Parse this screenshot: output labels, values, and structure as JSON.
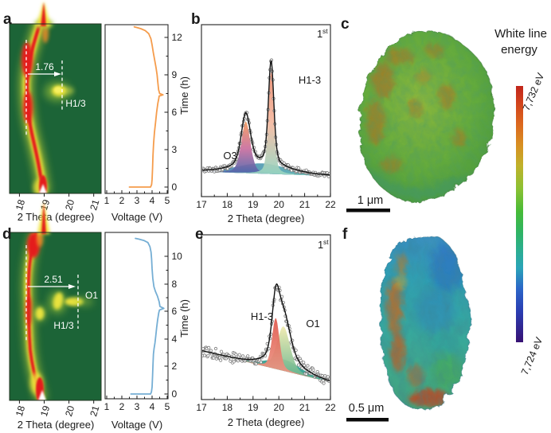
{
  "panels": {
    "a": {
      "label": "a",
      "annot_dist": "1.76",
      "annot_phase": "H1/3",
      "xticks": [
        "18",
        "19",
        "20",
        "21"
      ],
      "xlabel": "2 Theta (degree)",
      "v_ticks": [
        "1",
        "2",
        "3",
        "4",
        "5"
      ],
      "v_label": "Voltage (V)",
      "t_ticks": [
        "0",
        "3",
        "6",
        "9",
        "12"
      ],
      "t_label": "Time (h)"
    },
    "b": {
      "label": "b",
      "cycle": "1",
      "cycle_sup": "st",
      "peak_left": "O3",
      "peak_right": "H1-3",
      "xticks": [
        "17",
        "18",
        "19",
        "20",
        "21",
        "22"
      ],
      "xlabel": "2 Theta (degree)"
    },
    "c": {
      "label": "c",
      "scalebar": "1 μm"
    },
    "d": {
      "label": "d",
      "annot_dist": "2.51",
      "annot_phase_right": "O1",
      "annot_phase": "H1/3",
      "xticks": [
        "18",
        "19",
        "20",
        "21"
      ],
      "xlabel": "2 Theta (degree)",
      "v_ticks": [
        "1",
        "2",
        "3",
        "4",
        "5"
      ],
      "v_label": "Voltage (V)",
      "t_ticks": [
        "0",
        "2",
        "4",
        "6",
        "8",
        "10"
      ],
      "t_label": "Time (h)"
    },
    "e": {
      "label": "e",
      "cycle": "1",
      "cycle_sup": "st",
      "peak_left": "H1-3",
      "peak_right": "O1",
      "xticks": [
        "17",
        "18",
        "19",
        "20",
        "21",
        "22"
      ],
      "xlabel": "2 Theta (degree)"
    },
    "f": {
      "label": "f",
      "scalebar": "0.5 μm"
    }
  },
  "colorbar": {
    "title1": "White line",
    "title2": "energy",
    "max": "7,732 eV",
    "min": "7,724 eV"
  },
  "chart_data": [
    {
      "id": "a_contour",
      "type": "heatmap",
      "xlabel": "2 Theta (degree)",
      "xlim": [
        17.6,
        21.3
      ],
      "xticks": [
        18,
        19,
        20,
        21
      ],
      "yaxis": "Time (h), shared with voltage panel",
      "ylim_time_h": [
        0,
        13
      ],
      "colormap": "dark-green background with yellow-red intensity",
      "features": [
        {
          "label": "main reflection band",
          "two_theta_range": [
            18.2,
            18.9
          ],
          "extent": "full time range"
        },
        {
          "label": "H1/3",
          "two_theta": 19.6,
          "time_h": 7.8
        },
        {
          "label": "shift annotation",
          "text": "1.76",
          "from_two_theta": 18.28,
          "to_two_theta": 19.72,
          "time_h": 9.2
        }
      ]
    },
    {
      "id": "a_voltage",
      "type": "line",
      "xlabel": "Voltage (V)",
      "xlim": [
        1,
        5
      ],
      "xticks": [
        1,
        2,
        3,
        4,
        5
      ],
      "ylabel": "Time (h)",
      "ylim": [
        0,
        13
      ],
      "yticks": [
        0,
        3,
        6,
        9,
        12
      ],
      "series": [
        {
          "name": "1st cycle voltage profile",
          "color": "#f59c4c",
          "points_V_t": [
            [
              2.5,
              0
            ],
            [
              3.9,
              0
            ],
            [
              3.97,
              0.2
            ],
            [
              4.0,
              0.6
            ],
            [
              4.03,
              1.5
            ],
            [
              4.06,
              2.5
            ],
            [
              4.1,
              3.5
            ],
            [
              4.16,
              4.4
            ],
            [
              4.23,
              5.2
            ],
            [
              4.3,
              6.0
            ],
            [
              4.38,
              6.7
            ],
            [
              4.44,
              7.1
            ],
            [
              4.47,
              7.3
            ],
            [
              4.72,
              7.4
            ],
            [
              4.5,
              7.5
            ],
            [
              4.43,
              7.8
            ],
            [
              4.38,
              8.4
            ],
            [
              4.33,
              9.0
            ],
            [
              4.26,
              9.6
            ],
            [
              4.17,
              10.2
            ],
            [
              4.08,
              10.8
            ],
            [
              4.0,
              11.4
            ],
            [
              3.92,
              11.9
            ],
            [
              3.78,
              12.3
            ],
            [
              3.55,
              12.55
            ],
            [
              3.25,
              12.7
            ],
            [
              2.98,
              12.8
            ],
            [
              2.82,
              12.85
            ]
          ]
        }
      ]
    },
    {
      "id": "b_xrd",
      "type": "line+scatter",
      "cycle": "1st",
      "xlabel": "2 Theta (degree)",
      "xlim": [
        17,
        22
      ],
      "xticks": [
        17,
        18,
        19,
        20,
        21,
        22
      ],
      "ylim": [
        0,
        10
      ],
      "baseline": [
        1.45,
        1.2
      ],
      "noise": 0.14,
      "seed": 42,
      "fit_color": "#111111",
      "marker_color": "#7a7a7a",
      "peaks": [
        {
          "name": "base",
          "center": 19.35,
          "amplitude": 0.6,
          "hwhm": 1.15,
          "fill": [
            "#4b7fb6",
            "#57b9ae"
          ],
          "grad": "x"
        },
        {
          "name": "O3",
          "center": 18.72,
          "amplitude": 3.0,
          "hwhm": 0.21,
          "fill": [
            "#f2995c",
            "#c96e9e",
            "#3f63ac"
          ],
          "grad": "y"
        },
        {
          "name": "H1-3",
          "center": 19.7,
          "amplitude": 6.0,
          "hwhm": 0.125,
          "fill": [
            "#e98b6f",
            "#f4b9a0",
            "#93d6c2"
          ],
          "grad": "y"
        }
      ]
    },
    {
      "id": "d_contour",
      "type": "heatmap",
      "xlabel": "2 Theta (degree)",
      "xlim": [
        17.6,
        21.3
      ],
      "xticks": [
        18,
        19,
        20,
        21
      ],
      "yaxis": "Time (h), shared with voltage panel",
      "ylim_time_h": [
        0,
        11.5
      ],
      "colormap": "dark-green background with yellow-red intensity",
      "features": [
        {
          "label": "main reflection band",
          "two_theta_range": [
            18.2,
            18.9
          ],
          "extent": "full time range"
        },
        {
          "label": "H1/3",
          "two_theta": 19.56,
          "time_h": 6.8
        },
        {
          "label": "O1",
          "two_theta": 20.2,
          "time_h": 7.0
        },
        {
          "label": "shift annotation",
          "text": "2.51",
          "from_two_theta": 18.28,
          "to_two_theta": 20.37,
          "time_h": 7.8
        }
      ]
    },
    {
      "id": "d_voltage",
      "type": "line",
      "xlabel": "Voltage (V)",
      "xlim": [
        1,
        5
      ],
      "xticks": [
        1,
        2,
        3,
        4,
        5
      ],
      "ylabel": "Time (h)",
      "ylim": [
        0,
        11.5
      ],
      "yticks": [
        0,
        2,
        4,
        6,
        8,
        10
      ],
      "series": [
        {
          "name": "1st cycle voltage profile",
          "color": "#75aed4",
          "points_V_t": [
            [
              2.6,
              0
            ],
            [
              3.9,
              0
            ],
            [
              3.96,
              0.15
            ],
            [
              4.0,
              0.5
            ],
            [
              4.03,
              1.3
            ],
            [
              4.06,
              2.1
            ],
            [
              4.09,
              2.9
            ],
            [
              4.13,
              3.3
            ],
            [
              4.19,
              3.7
            ],
            [
              4.24,
              4.2
            ],
            [
              4.3,
              4.8
            ],
            [
              4.37,
              5.4
            ],
            [
              4.44,
              5.9
            ],
            [
              4.49,
              6.1
            ],
            [
              4.78,
              6.22
            ],
            [
              4.52,
              6.35
            ],
            [
              4.47,
              6.7
            ],
            [
              4.36,
              7.1
            ],
            [
              4.22,
              7.45
            ],
            [
              4.12,
              7.8
            ],
            [
              4.05,
              8.4
            ],
            [
              4.0,
              9.1
            ],
            [
              3.97,
              9.8
            ],
            [
              3.93,
              10.3
            ],
            [
              3.86,
              10.7
            ],
            [
              3.72,
              11.0
            ],
            [
              3.45,
              11.15
            ],
            [
              3.12,
              11.25
            ],
            [
              2.9,
              11.3
            ]
          ]
        }
      ]
    },
    {
      "id": "e_xrd",
      "type": "line+scatter",
      "cycle": "1st",
      "xlabel": "2 Theta (degree)",
      "xlim": [
        17,
        22
      ],
      "xticks": [
        17,
        18,
        19,
        20,
        21,
        22
      ],
      "ylim": [
        0,
        10
      ],
      "baseline": [
        2.95,
        1.05
      ],
      "noise": 0.33,
      "seed": 77,
      "fit_color": "#111111",
      "marker_color": "#7a7a7a",
      "peaks": [
        {
          "name": "base",
          "center": 20.2,
          "amplitude": 0.7,
          "hwhm": 0.75,
          "fill": [
            "#2f9e8e",
            "#2f9e8e"
          ],
          "grad": "y"
        },
        {
          "name": "O1",
          "center": 20.18,
          "amplitude": 2.7,
          "hwhm": 0.3,
          "fill": [
            "#efe9ac",
            "#58b08b"
          ],
          "grad": "y"
        },
        {
          "name": "H1-3",
          "center": 19.88,
          "amplitude": 3.1,
          "hwhm": 0.17,
          "fill": [
            "#e0564a",
            "#eda08e"
          ],
          "grad": "y"
        }
      ]
    },
    {
      "id": "c_particle_map",
      "type": "heatmap",
      "description": "3D tomographic rendering of particle after 1st cycle, surface colored by white line energy (mostly green with orange patches)",
      "scalebar": "1 μm"
    },
    {
      "id": "f_particle_map",
      "type": "heatmap",
      "description": "3D tomographic rendering of particle, surface colored by white line energy (mostly blue-teal with orange-red patches)",
      "scalebar": "0.5 μm"
    },
    {
      "id": "white_line_colorbar",
      "type": "colorbar",
      "label": "White line energy",
      "max_eV": 7732,
      "min_eV": 7724,
      "gradient_top_to_bottom": [
        "#c1251b",
        "#dc681e",
        "#c0b12a",
        "#47bb37",
        "#2bae90",
        "#2aa4b8",
        "#2b66c8",
        "#371173"
      ]
    }
  ]
}
